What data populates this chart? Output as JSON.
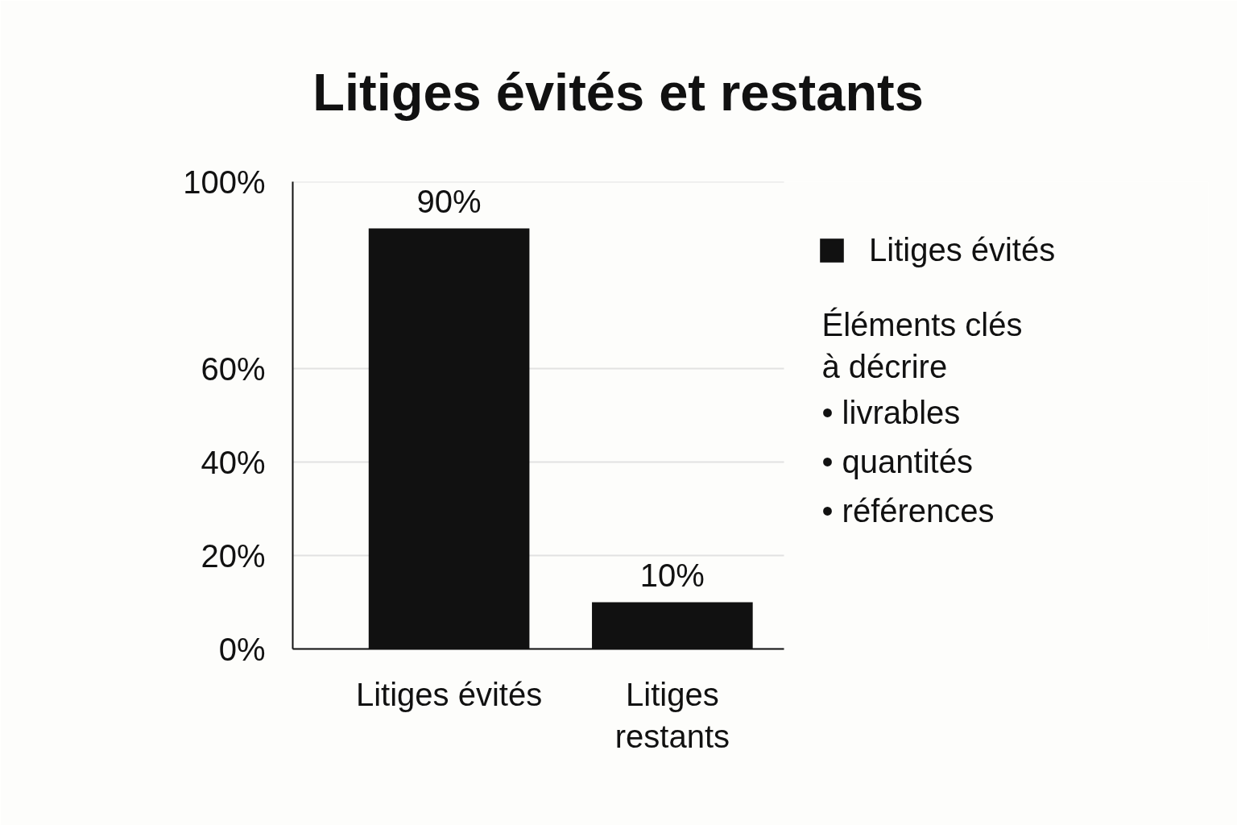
{
  "chart_data": {
    "type": "bar",
    "title": "Litiges évités et restants",
    "categories": [
      "Litiges évités",
      "Litiges restants"
    ],
    "series": [
      {
        "name": "Litiges évités",
        "color": "#111111",
        "values": [
          90,
          10
        ],
        "value_labels": [
          "90%",
          "10%"
        ]
      }
    ],
    "ylim": [
      0,
      100
    ],
    "yticks": [
      {
        "value": 0,
        "label": "0%"
      },
      {
        "value": 20,
        "label": "20%"
      },
      {
        "value": 40,
        "label": "40%"
      },
      {
        "value": 60,
        "label": "60%"
      },
      {
        "value": 100,
        "label": "100%"
      }
    ],
    "grid": "y",
    "legend": "right",
    "annotations": [
      "Éléments clés à décrire",
      "• livrables",
      "• quantités",
      "• références"
    ]
  }
}
